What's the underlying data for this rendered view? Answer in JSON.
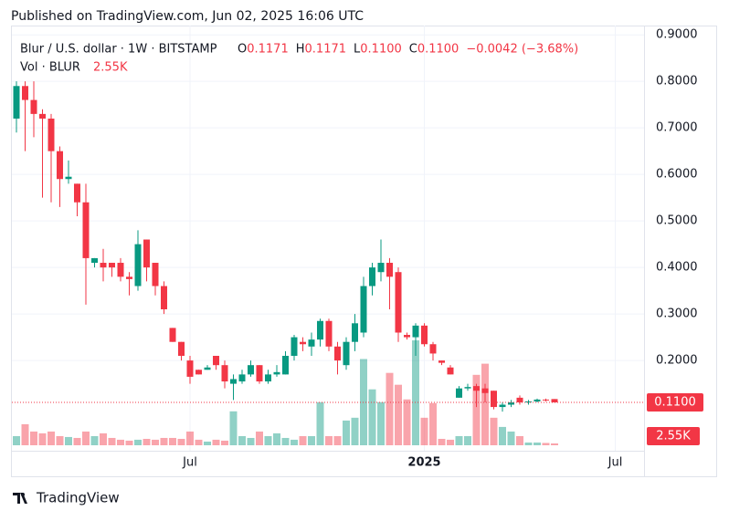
{
  "header": {
    "published": "Published on TradingView.com, Jun 02, 2025 16:06 UTC"
  },
  "footer": {
    "logo": "TradingView"
  },
  "chart_data": {
    "type": "candlestick",
    "symbol": "Blur / U.S. dollar · 1W · BITSTAMP",
    "legend": {
      "o": "O",
      "open": "0.1171",
      "h": "H",
      "high": "0.1171",
      "l": "L",
      "low": "0.1100",
      "c": "C",
      "close": "0.1100",
      "change": "−0.0042 (−3.68%)"
    },
    "volume_title": "Vol · BLUR",
    "volume_value": "2.55K",
    "up_color": "#089981",
    "down_color": "#f23645",
    "grid": true,
    "ylim": [
      -0.045,
      0.92
    ],
    "yticks": [
      {
        "value": 0.2,
        "label": "0.2000"
      },
      {
        "value": 0.3,
        "label": "0.3000"
      },
      {
        "value": 0.4,
        "label": "0.4000"
      },
      {
        "value": 0.5,
        "label": "0.5000"
      },
      {
        "value": 0.6,
        "label": "0.6000"
      },
      {
        "value": 0.7,
        "label": "0.7000"
      },
      {
        "value": 0.8,
        "label": "0.8000"
      },
      {
        "value": 0.9,
        "label": "0.9000"
      }
    ],
    "last_price": {
      "value": 0.11,
      "label": "0.1100"
    },
    "last_volume": {
      "value": 2550,
      "label": "2.55K"
    },
    "categories": [
      null,
      null,
      null,
      null,
      null,
      null,
      null,
      null,
      null,
      null,
      null,
      null,
      null,
      null,
      null,
      null,
      null,
      null,
      null,
      null,
      "Jul",
      null,
      null,
      null,
      null,
      null,
      null,
      null,
      null,
      null,
      null,
      null,
      null,
      null,
      null,
      null,
      null,
      null,
      null,
      null,
      null,
      null,
      null,
      null,
      null,
      null,
      null,
      "2025",
      null,
      null,
      null,
      null,
      null,
      null,
      null,
      null,
      null,
      null,
      null,
      null,
      null,
      null,
      null,
      null,
      null,
      null,
      null,
      null,
      null,
      "Jul",
      null,
      null
    ],
    "open": [
      0.72,
      0.79,
      0.76,
      0.73,
      0.72,
      0.65,
      0.59,
      0.58,
      0.54,
      0.41,
      0.41,
      0.41,
      0.41,
      0.38,
      0.36,
      0.46,
      0.41,
      0.36,
      0.27,
      0.24,
      0.2,
      0.18,
      0.18,
      0.21,
      0.19,
      0.15,
      0.155,
      0.17,
      0.19,
      0.155,
      0.17,
      0.17,
      0.21,
      0.24,
      0.23,
      0.245,
      0.285,
      0.23,
      0.19,
      0.24,
      0.26,
      0.36,
      0.39,
      0.41,
      0.39,
      0.255,
      0.25,
      0.275,
      0.235,
      0.2,
      0.185,
      0.12,
      0.14,
      0.145,
      0.14,
      0.135,
      0.1,
      0.105,
      0.12,
      0.11,
      0.112,
      0.116,
      0.1171,
      null,
      null,
      null,
      null,
      null,
      null,
      null,
      null,
      null
    ],
    "high": [
      0.8,
      0.8,
      0.8,
      0.74,
      0.73,
      0.66,
      0.63,
      0.58,
      0.58,
      0.42,
      0.44,
      0.41,
      0.42,
      0.39,
      0.48,
      0.46,
      0.41,
      0.37,
      0.27,
      0.24,
      0.21,
      0.18,
      0.19,
      0.21,
      0.2,
      0.17,
      0.18,
      0.2,
      0.19,
      0.18,
      0.19,
      0.22,
      0.255,
      0.25,
      0.26,
      0.29,
      0.29,
      0.24,
      0.25,
      0.3,
      0.38,
      0.41,
      0.46,
      0.42,
      0.4,
      0.26,
      0.28,
      0.28,
      0.24,
      0.2,
      0.19,
      0.145,
      0.15,
      0.15,
      0.15,
      0.135,
      0.11,
      0.115,
      0.125,
      0.115,
      0.118,
      0.118,
      0.1171,
      null,
      null,
      null,
      null,
      null,
      null,
      null,
      null,
      null
    ],
    "low": [
      0.69,
      0.65,
      0.68,
      0.55,
      0.54,
      0.53,
      0.58,
      0.51,
      0.32,
      0.4,
      0.37,
      0.38,
      0.37,
      0.34,
      0.35,
      0.37,
      0.34,
      0.3,
      0.24,
      0.2,
      0.15,
      0.17,
      0.18,
      0.18,
      0.14,
      0.115,
      0.15,
      0.165,
      0.15,
      0.15,
      0.165,
      0.17,
      0.2,
      0.22,
      0.21,
      0.23,
      0.22,
      0.17,
      0.18,
      0.22,
      0.25,
      0.34,
      0.37,
      0.31,
      0.24,
      0.245,
      0.21,
      0.23,
      0.2,
      0.19,
      0.17,
      0.12,
      0.135,
      0.1,
      0.11,
      0.095,
      0.09,
      0.1,
      0.105,
      0.105,
      0.11,
      0.112,
      0.11,
      null,
      null,
      null,
      null,
      null,
      null,
      null,
      null,
      null
    ],
    "close": [
      0.79,
      0.76,
      0.73,
      0.72,
      0.65,
      0.59,
      0.595,
      0.54,
      0.42,
      0.42,
      0.4,
      0.4,
      0.38,
      0.375,
      0.45,
      0.4,
      0.36,
      0.31,
      0.24,
      0.21,
      0.165,
      0.17,
      0.185,
      0.19,
      0.155,
      0.16,
      0.17,
      0.19,
      0.155,
      0.17,
      0.175,
      0.21,
      0.25,
      0.235,
      0.245,
      0.285,
      0.23,
      0.2,
      0.24,
      0.28,
      0.36,
      0.4,
      0.41,
      0.38,
      0.26,
      0.25,
      0.275,
      0.235,
      0.215,
      0.195,
      0.17,
      0.14,
      0.143,
      0.135,
      0.13,
      0.1,
      0.105,
      0.11,
      0.11,
      0.112,
      0.116,
      0.115,
      0.11,
      null,
      null,
      null,
      null,
      null,
      null,
      null,
      null,
      null
    ],
    "volume": [
      12700,
      29300,
      19100,
      16600,
      19100,
      12700,
      11500,
      10200,
      19100,
      12700,
      16600,
      10200,
      7700,
      6400,
      7700,
      8900,
      7700,
      10200,
      10200,
      8900,
      19100,
      7700,
      5100,
      7700,
      6400,
      47200,
      12700,
      10200,
      19100,
      12700,
      16600,
      10200,
      7700,
      12700,
      12700,
      59900,
      12700,
      12700,
      34400,
      38300,
      120000,
      77800,
      60000,
      100700,
      84200,
      63800,
      146000,
      38300,
      58700,
      8900,
      7700,
      12700,
      12700,
      98000,
      113500,
      38300,
      25500,
      19100,
      12700,
      3800,
      3800,
      3200,
      2550,
      null,
      null,
      null,
      null,
      null,
      null,
      null,
      null,
      null
    ]
  }
}
